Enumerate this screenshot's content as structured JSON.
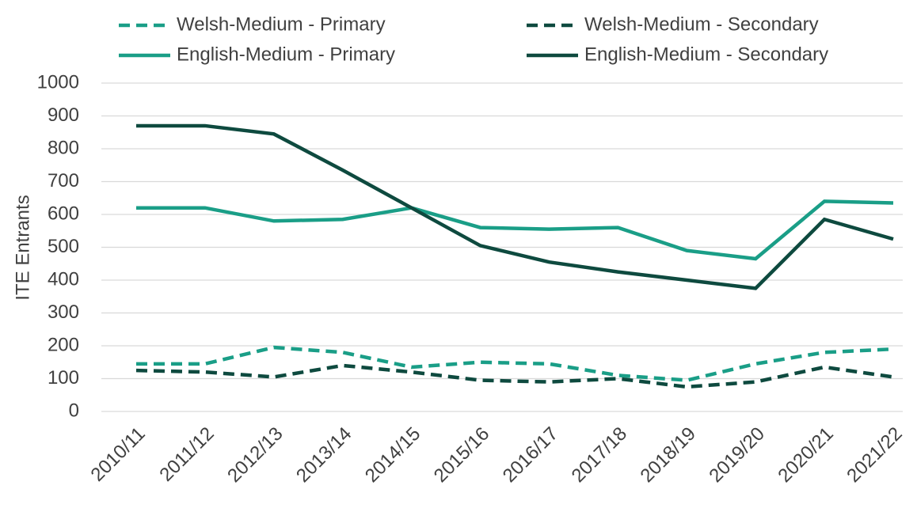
{
  "chart_data": {
    "type": "line",
    "y_label": "ITE Entrants",
    "categories": [
      "2010/11",
      "2011/12",
      "2012/13",
      "2013/14",
      "2014/15",
      "2015/16",
      "2016/17",
      "2017/18",
      "2018/19",
      "2019/20",
      "2020/21",
      "2021/22"
    ],
    "series": [
      {
        "name": "Welsh-Medium - Primary",
        "color": "#1a9e87",
        "line_style": "dashed",
        "values": [
          145,
          145,
          195,
          180,
          135,
          150,
          145,
          110,
          95,
          145,
          180,
          190
        ]
      },
      {
        "name": "Welsh-Medium - Secondary",
        "color": "#0e4a3f",
        "line_style": "dashed",
        "values": [
          125,
          120,
          105,
          140,
          120,
          95,
          90,
          100,
          75,
          90,
          135,
          105
        ]
      },
      {
        "name": "English-Medium - Primary",
        "color": "#1a9e87",
        "line_style": "solid",
        "values": [
          620,
          620,
          580,
          585,
          620,
          560,
          555,
          560,
          490,
          465,
          640,
          635
        ]
      },
      {
        "name": "English-Medium - Secondary",
        "color": "#0e4a3f",
        "line_style": "solid",
        "values": [
          870,
          870,
          845,
          735,
          620,
          505,
          455,
          425,
          400,
          375,
          585,
          525
        ]
      }
    ],
    "ylim": [
      0,
      1000
    ],
    "yticks": [
      0,
      100,
      200,
      300,
      400,
      500,
      600,
      700,
      800,
      900,
      1000
    ],
    "grid": true,
    "legend": "top"
  }
}
